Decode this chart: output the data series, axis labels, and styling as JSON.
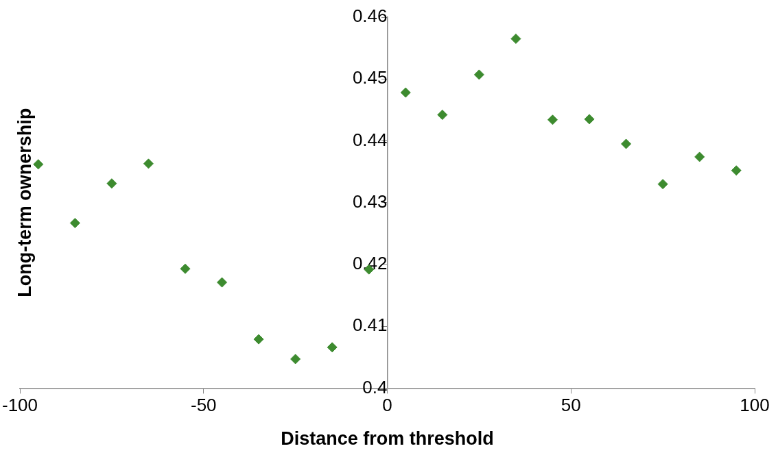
{
  "chart_data": {
    "type": "scatter",
    "xlabel": "Distance from threshold",
    "ylabel": "Long-term ownership",
    "x": [
      -95,
      -85,
      -75,
      -65,
      -55,
      -45,
      -35,
      -25,
      -15,
      -5,
      5,
      15,
      25,
      35,
      45,
      55,
      65,
      75,
      85,
      95
    ],
    "series": [
      {
        "color": "#3d8b2f",
        "values": [
          0.4362,
          0.4267,
          0.4331,
          0.4363,
          0.4193,
          0.4171,
          0.4079,
          0.4047,
          0.4066,
          0.4192,
          0.4478,
          0.4442,
          0.4507,
          0.4565,
          0.4434,
          0.4435,
          0.4395,
          0.433,
          0.4374,
          0.4352
        ]
      }
    ],
    "xlim": [
      -100,
      100
    ],
    "xticks": [
      -100,
      -50,
      0,
      50,
      100
    ],
    "ylim": [
      0.4,
      0.46
    ],
    "yticks": [
      0.4,
      0.41,
      0.42,
      0.43,
      0.44,
      0.45,
      0.46
    ],
    "grid": false,
    "legend": false,
    "marker": "diamond"
  }
}
